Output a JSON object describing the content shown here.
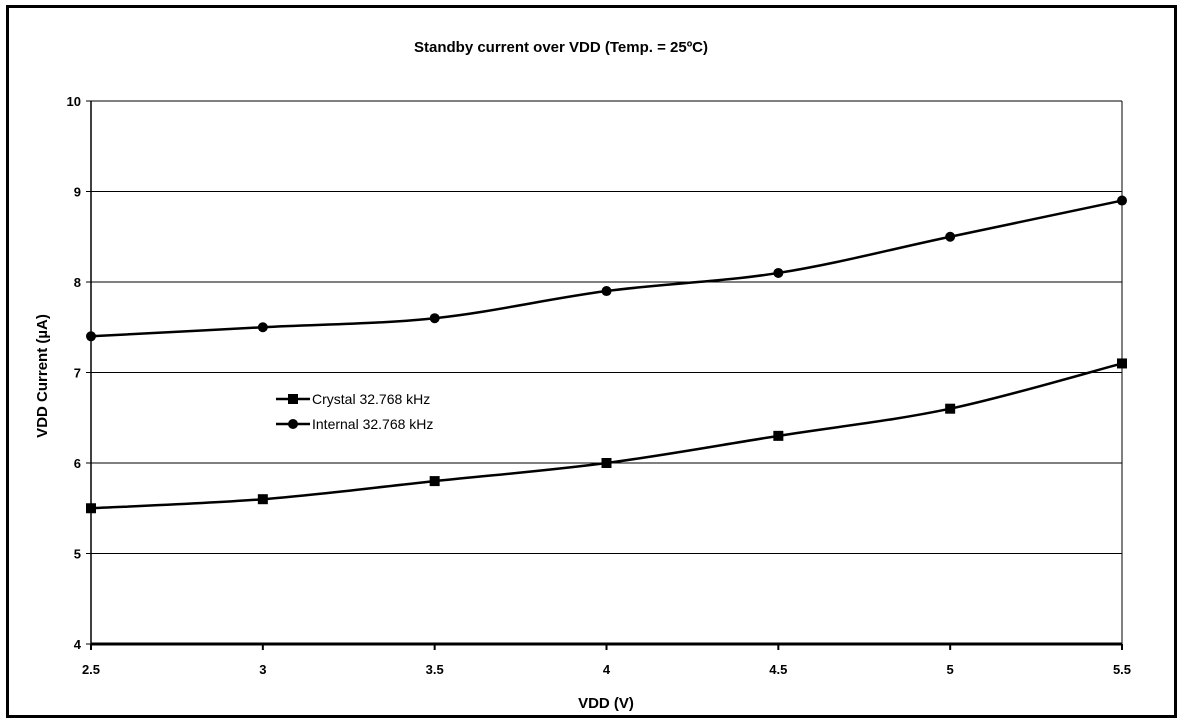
{
  "chart_data": {
    "type": "line",
    "title": "Standby current over VDD (Temp. = 25ºC)",
    "xlabel": "VDD (V)",
    "ylabel": "VDD Current (µA)",
    "xlim": [
      2.5,
      5.5
    ],
    "ylim": [
      4,
      10
    ],
    "x": [
      2.5,
      3,
      3.5,
      4,
      4.5,
      5,
      5.5
    ],
    "x_tick_labels": [
      "2.5",
      "3",
      "3.5",
      "4",
      "4.5",
      "5",
      "5.5"
    ],
    "y_ticks": [
      4,
      5,
      6,
      7,
      8,
      9,
      10
    ],
    "y_tick_labels": [
      "4",
      "5",
      "6",
      "7",
      "8",
      "9",
      "10"
    ],
    "grid": "horizontal",
    "legend_position": "left-middle",
    "series": [
      {
        "name": "Crystal 32.768 kHz",
        "marker": "square",
        "color": "#000000",
        "values": [
          5.5,
          5.6,
          5.8,
          6.0,
          6.3,
          6.6,
          7.1
        ]
      },
      {
        "name": "Internal 32.768 kHz",
        "marker": "circle",
        "color": "#000000",
        "values": [
          7.4,
          7.5,
          7.6,
          7.9,
          8.1,
          8.5,
          8.9
        ]
      }
    ]
  }
}
